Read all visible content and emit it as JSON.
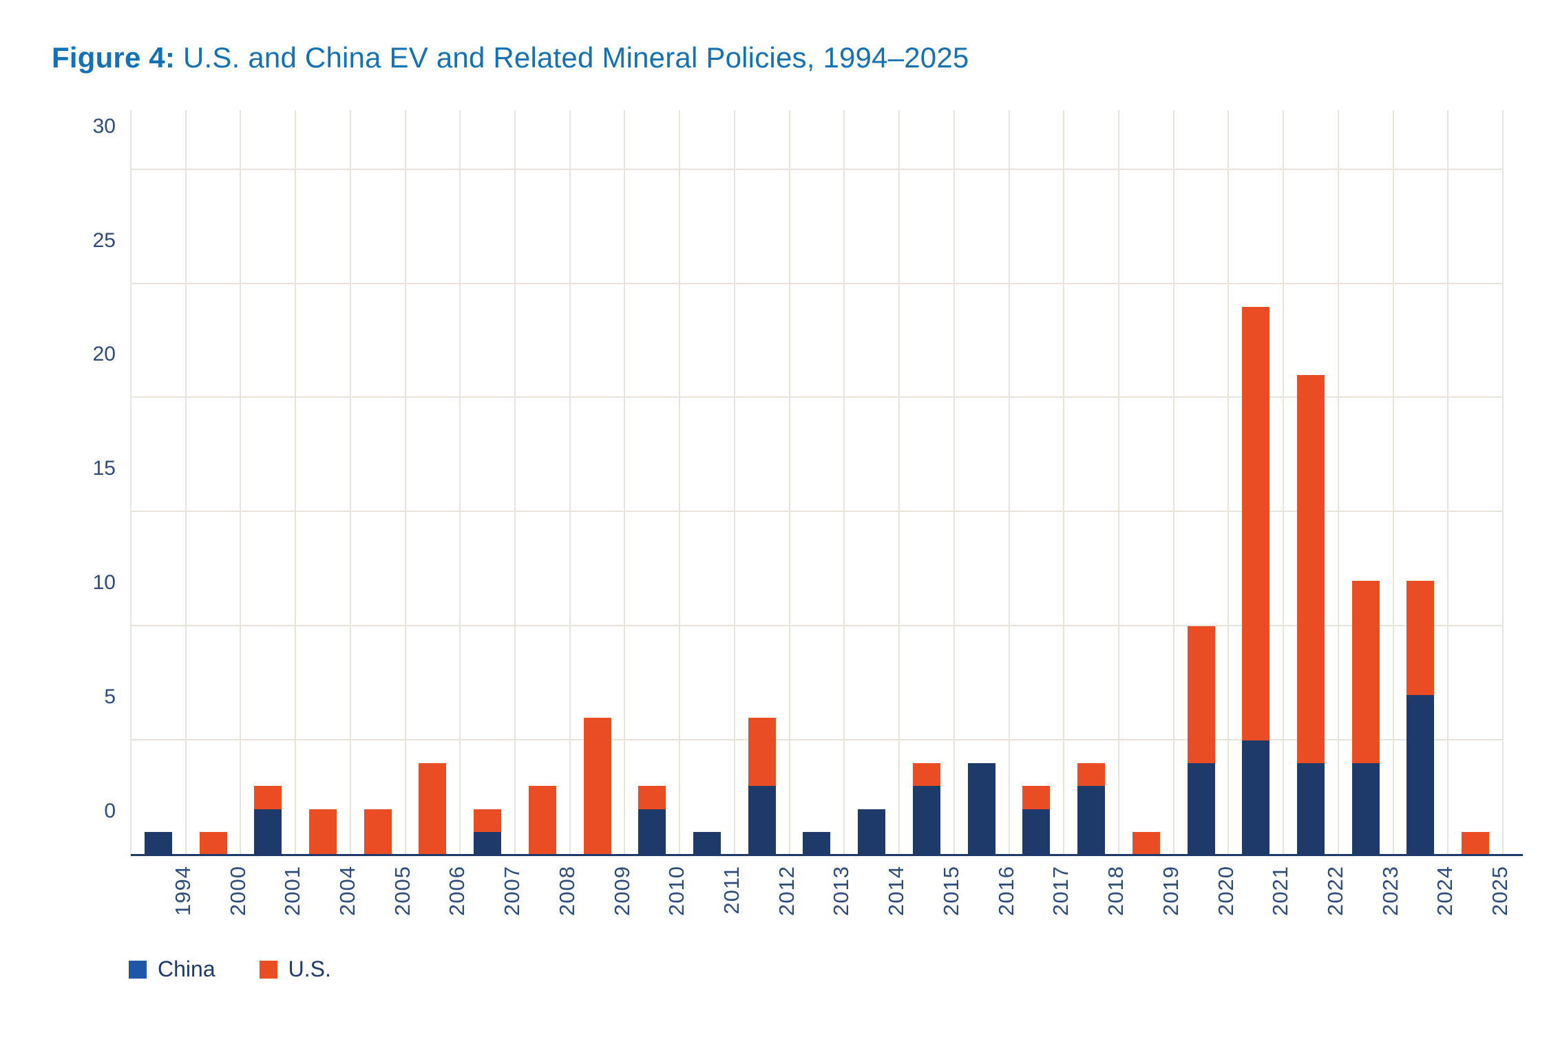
{
  "figure": {
    "title_prefix": "Figure 4:",
    "title_rest": " U.S. and China EV and Related Mineral Policies, 1994–2025"
  },
  "colors": {
    "title_blue": "#1571b3",
    "china_bar": "#1e3a6b",
    "us_bar": "#ea4c24",
    "china_legend_swatch": "#1f57a6",
    "us_legend_swatch": "#ea4c24",
    "axis_text": "#2d4b7b",
    "legend_text": "#1e3a6b",
    "gridline": "#e8e4dc",
    "axis_line": "#1e3a6b",
    "background": "#ffffff"
  },
  "legend": {
    "items": [
      {
        "label": "China",
        "color": "#1f57a6"
      },
      {
        "label": "U.S.",
        "color": "#ea4c24"
      }
    ]
  },
  "chart_data": {
    "type": "bar",
    "stacked": true,
    "title": "Figure 4: U.S. and China EV and Related Mineral Policies, 1994–2025",
    "xlabel": "",
    "ylabel": "",
    "categories": [
      "1994",
      "2000",
      "2001",
      "2004",
      "2005",
      "2006",
      "2007",
      "2008",
      "2009",
      "2010",
      "2011",
      "2012",
      "2013",
      "2014",
      "2015",
      "2016",
      "2017",
      "2018",
      "2019",
      "2020",
      "2021",
      "2022",
      "2023",
      "2024",
      "2025"
    ],
    "series": [
      {
        "name": "China",
        "color": "#1e3a6b",
        "values": [
          1,
          0,
          2,
          0,
          0,
          0,
          1,
          0,
          0,
          2,
          1,
          3,
          1,
          2,
          3,
          4,
          2,
          3,
          0,
          4,
          5,
          4,
          4,
          7,
          0
        ]
      },
      {
        "name": "U.S.",
        "color": "#ea4c24",
        "values": [
          0,
          1,
          1,
          2,
          2,
          4,
          1,
          3,
          6,
          1,
          0,
          3,
          0,
          0,
          1,
          0,
          1,
          1,
          1,
          6,
          19,
          17,
          8,
          5,
          1
        ]
      }
    ],
    "totals": [
      1,
      1,
      3,
      2,
      2,
      4,
      2,
      3,
      6,
      3,
      1,
      6,
      1,
      2,
      4,
      4,
      3,
      4,
      1,
      10,
      24,
      21,
      12,
      12,
      1
    ],
    "ylim": [
      0,
      30
    ],
    "yticks": [
      0,
      5,
      10,
      15,
      20,
      25,
      30
    ],
    "grid": {
      "horizontal_interval": 5,
      "vertical": "one-line-per-year-column-boundary"
    },
    "legend_position": "bottom-left",
    "bar_orientation": "vertical",
    "x_tick_label_rotation_deg": 90
  }
}
